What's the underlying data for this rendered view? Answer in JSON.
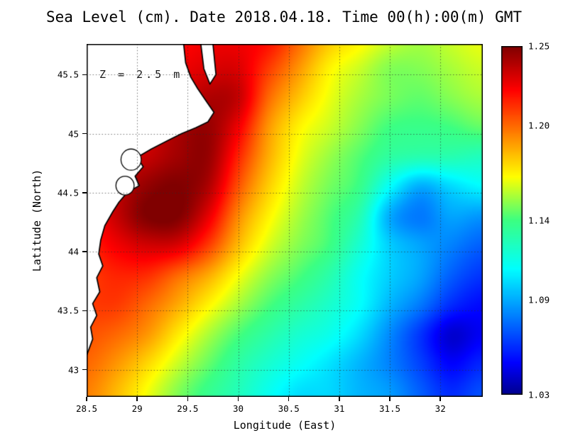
{
  "chart_data": {
    "type": "heatmap",
    "title": "Sea Level (cm). Date 2018.04.18. Time 00(h):00(m) GMT",
    "annotation": "Z = 2.5 m",
    "xlabel": "Longitude (East)",
    "ylabel": "Latitude (North)",
    "x_range": [
      28.5,
      32.42
    ],
    "y_range": [
      42.77,
      45.76
    ],
    "x_tick_labels": [
      "28.5",
      "29",
      "29.5",
      "30",
      "30.5",
      "31",
      "31.5",
      "32"
    ],
    "y_tick_labels": [
      "43",
      "43.5",
      "44",
      "44.5",
      "45",
      "45.5"
    ],
    "colorbar": {
      "min": 1.03,
      "max": 1.25,
      "tick_labels": [
        "1.25",
        "1.20",
        "1.14",
        "1.09",
        "1.03"
      ],
      "colormap": "jet"
    },
    "grid": {
      "lon_start": 28.5,
      "lon_step": 0.3,
      "nlon": 14,
      "lat_start": 45.8,
      "lat_step": -0.25,
      "nlat": 13,
      "values": [
        [
          1.21,
          1.21,
          1.215,
          1.22,
          1.225,
          1.225,
          1.22,
          1.2,
          1.18,
          1.17,
          1.16,
          1.155,
          1.16,
          1.165
        ],
        [
          1.21,
          1.215,
          1.22,
          1.225,
          1.23,
          1.23,
          1.21,
          1.19,
          1.17,
          1.16,
          1.15,
          1.15,
          1.155,
          1.16
        ],
        [
          1.215,
          1.22,
          1.225,
          1.23,
          1.24,
          1.235,
          1.2,
          1.18,
          1.165,
          1.155,
          1.148,
          1.145,
          1.15,
          1.155
        ],
        [
          1.22,
          1.225,
          1.23,
          1.24,
          1.245,
          1.225,
          1.19,
          1.17,
          1.16,
          1.15,
          1.14,
          1.138,
          1.14,
          1.145
        ],
        [
          1.22,
          1.23,
          1.235,
          1.243,
          1.245,
          1.215,
          1.185,
          1.165,
          1.153,
          1.143,
          1.132,
          1.128,
          1.128,
          1.125
        ],
        [
          1.225,
          1.235,
          1.246,
          1.25,
          1.24,
          1.205,
          1.178,
          1.16,
          1.148,
          1.138,
          1.11,
          1.09,
          1.1,
          1.108
        ],
        [
          1.22,
          1.235,
          1.25,
          1.25,
          1.228,
          1.193,
          1.17,
          1.155,
          1.143,
          1.128,
          1.09,
          1.078,
          1.088,
          1.085
        ],
        [
          1.215,
          1.225,
          1.232,
          1.23,
          1.21,
          1.182,
          1.162,
          1.15,
          1.14,
          1.12,
          1.098,
          1.088,
          1.08,
          1.072
        ],
        [
          1.21,
          1.215,
          1.213,
          1.2,
          1.186,
          1.167,
          1.152,
          1.142,
          1.13,
          1.112,
          1.098,
          1.088,
          1.072,
          1.062
        ],
        [
          1.21,
          1.21,
          1.2,
          1.186,
          1.17,
          1.155,
          1.142,
          1.132,
          1.122,
          1.11,
          1.092,
          1.078,
          1.06,
          1.052
        ],
        [
          1.205,
          1.2,
          1.19,
          1.172,
          1.156,
          1.142,
          1.131,
          1.121,
          1.114,
          1.101,
          1.082,
          1.062,
          1.042,
          1.048
        ],
        [
          1.2,
          1.19,
          1.176,
          1.16,
          1.146,
          1.132,
          1.121,
          1.112,
          1.103,
          1.092,
          1.08,
          1.065,
          1.05,
          1.058
        ],
        [
          1.195,
          1.182,
          1.166,
          1.15,
          1.137,
          1.126,
          1.113,
          1.102,
          1.1,
          1.092,
          1.086,
          1.072,
          1.06,
          1.068
        ]
      ]
    },
    "coastline": {
      "main": [
        [
          28.5,
          45.76
        ],
        [
          29.46,
          45.76
        ],
        [
          29.48,
          45.6
        ],
        [
          29.53,
          45.48
        ],
        [
          29.6,
          45.38
        ],
        [
          29.68,
          45.28
        ],
        [
          29.76,
          45.18
        ],
        [
          29.7,
          45.1
        ],
        [
          29.58,
          45.05
        ],
        [
          29.44,
          45.0
        ],
        [
          29.3,
          44.94
        ],
        [
          29.14,
          44.87
        ],
        [
          29.0,
          44.8
        ],
        [
          29.06,
          44.72
        ],
        [
          28.98,
          44.64
        ],
        [
          29.02,
          44.56
        ],
        [
          28.9,
          44.5
        ],
        [
          28.82,
          44.42
        ],
        [
          28.76,
          44.34
        ],
        [
          28.68,
          44.22
        ],
        [
          28.64,
          44.1
        ],
        [
          28.62,
          43.98
        ],
        [
          28.66,
          43.88
        ],
        [
          28.6,
          43.78
        ],
        [
          28.63,
          43.66
        ],
        [
          28.56,
          43.56
        ],
        [
          28.6,
          43.46
        ],
        [
          28.54,
          43.36
        ],
        [
          28.56,
          43.26
        ],
        [
          28.5,
          43.12
        ]
      ],
      "strip": [
        [
          29.63,
          45.76
        ],
        [
          29.66,
          45.55
        ],
        [
          29.72,
          45.42
        ],
        [
          29.78,
          45.5
        ],
        [
          29.75,
          45.76
        ]
      ],
      "lagoons": [
        {
          "c": [
            28.94,
            44.78
          ],
          "r": [
            0.1,
            0.09
          ]
        },
        {
          "c": [
            28.88,
            44.56
          ],
          "r": [
            0.09,
            0.08
          ]
        }
      ]
    }
  }
}
